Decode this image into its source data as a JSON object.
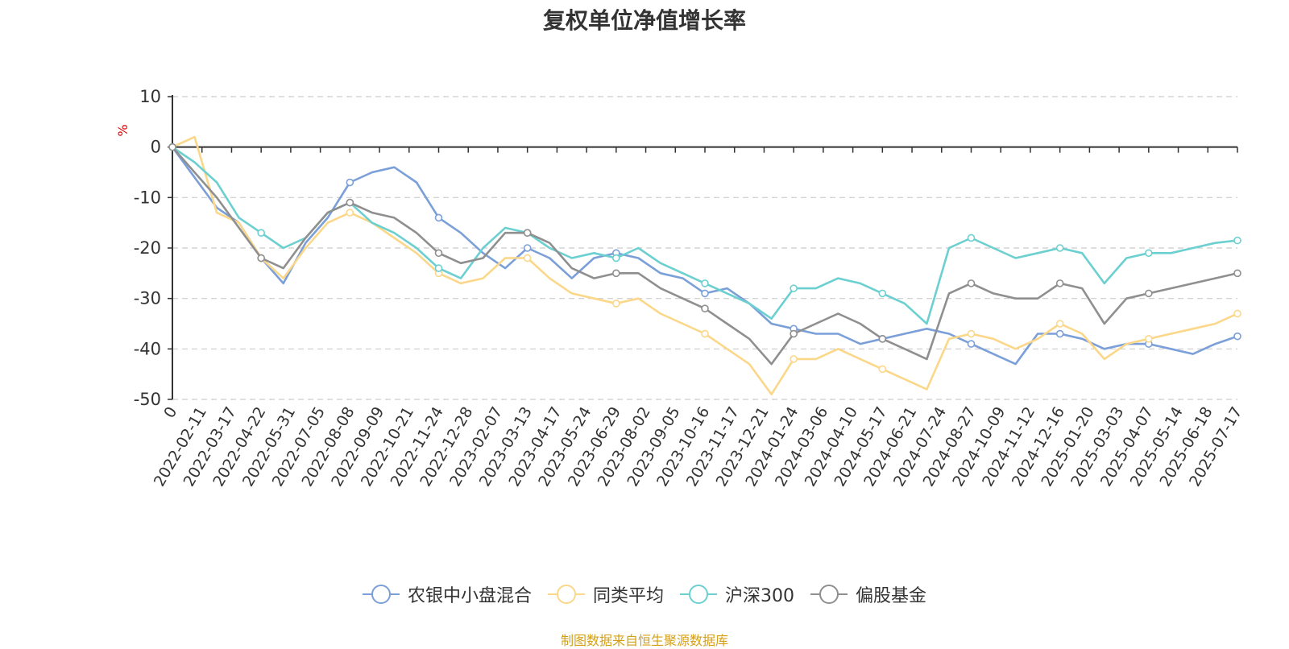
{
  "title": "复权单位净值增长率",
  "source_note": "制图数据来自恒生聚源数据库",
  "colors": {
    "axis": "#333333",
    "grid": "#cccccc",
    "unit_label": "#e00000"
  },
  "chart_data": {
    "type": "line",
    "title": "复权单位净值增长率",
    "ylabel": "%",
    "ylim": [
      -50,
      10
    ],
    "yticks": [
      10,
      0,
      -10,
      -20,
      -30,
      -40,
      -50
    ],
    "grid": "horizontal dashed",
    "legend_position": "bottom-center",
    "x_tick_labels": [
      "0",
      "2022-02-11",
      "2022-03-17",
      "2022-04-22",
      "2022-05-31",
      "2022-07-05",
      "2022-08-08",
      "2022-09-09",
      "2022-10-21",
      "2022-11-24",
      "2022-12-28",
      "2023-02-07",
      "2023-03-13",
      "2023-04-17",
      "2023-05-24",
      "2023-06-29",
      "2023-08-02",
      "2023-09-05",
      "2023-10-16",
      "2023-11-17",
      "2023-12-21",
      "2024-01-24",
      "2024-03-06",
      "2024-04-10",
      "2024-05-17",
      "2024-06-21",
      "2024-07-24",
      "2024-08-27",
      "2024-10-09",
      "2024-11-12",
      "2024-12-16",
      "2025-01-20",
      "2025-03-03",
      "2025-04-07",
      "2025-05-14",
      "2025-06-18",
      "2025-07-17"
    ],
    "series": [
      {
        "name": "农银中小盘混合",
        "color": "#7b9fd8",
        "values": [
          0,
          -6,
          -12,
          -15,
          -22,
          -27,
          -19,
          -14,
          -7,
          -5,
          -4,
          -7,
          -14,
          -17,
          -21,
          -24,
          -20,
          -22,
          -26,
          -22,
          -21,
          -22,
          -25,
          -26,
          -29,
          -28,
          -31,
          -35,
          -36,
          -37,
          -37,
          -39,
          -38,
          -37,
          -36,
          -37,
          -39,
          -41,
          -43,
          -37,
          -37,
          -38,
          -40,
          -39,
          -39,
          -40,
          -41,
          -39,
          -37.5
        ]
      },
      {
        "name": "同类平均",
        "color": "#fbd78a",
        "values": [
          0,
          2,
          -13,
          -15,
          -22,
          -26,
          -20,
          -15,
          -13,
          -15,
          -18,
          -21,
          -25,
          -27,
          -26,
          -22,
          -22,
          -26,
          -29,
          -30,
          -31,
          -30,
          -33,
          -35,
          -37,
          -40,
          -43,
          -49,
          -42,
          -42,
          -40,
          -42,
          -44,
          -46,
          -48,
          -38,
          -37,
          -38,
          -40,
          -38,
          -35,
          -37,
          -42,
          -39,
          -38,
          -37,
          -36,
          -35,
          -33
        ]
      },
      {
        "name": "沪深300",
        "color": "#6ccfd0",
        "values": [
          0,
          -3,
          -7,
          -14,
          -17,
          -20,
          -18,
          -13,
          -11,
          -15,
          -17,
          -20,
          -24,
          -26,
          -20,
          -16,
          -17,
          -20,
          -22,
          -21,
          -22,
          -20,
          -23,
          -25,
          -27,
          -29,
          -31,
          -34,
          -28,
          -28,
          -26,
          -27,
          -29,
          -31,
          -35,
          -20,
          -18,
          -20,
          -22,
          -21,
          -20,
          -21,
          -27,
          -22,
          -21,
          -21,
          -20,
          -19,
          -18.5
        ]
      },
      {
        "name": "偏股基金",
        "color": "#8f8f8f",
        "values": [
          0,
          -5,
          -10,
          -16,
          -22,
          -24,
          -18,
          -13,
          -11,
          -13,
          -14,
          -17,
          -21,
          -23,
          -22,
          -17,
          -17,
          -19,
          -24,
          -26,
          -25,
          -25,
          -28,
          -30,
          -32,
          -35,
          -38,
          -43,
          -37,
          -35,
          -33,
          -35,
          -38,
          -40,
          -42,
          -29,
          -27,
          -29,
          -30,
          -30,
          -27,
          -28,
          -35,
          -30,
          -29,
          -28,
          -27,
          -26,
          -25
        ]
      }
    ]
  }
}
